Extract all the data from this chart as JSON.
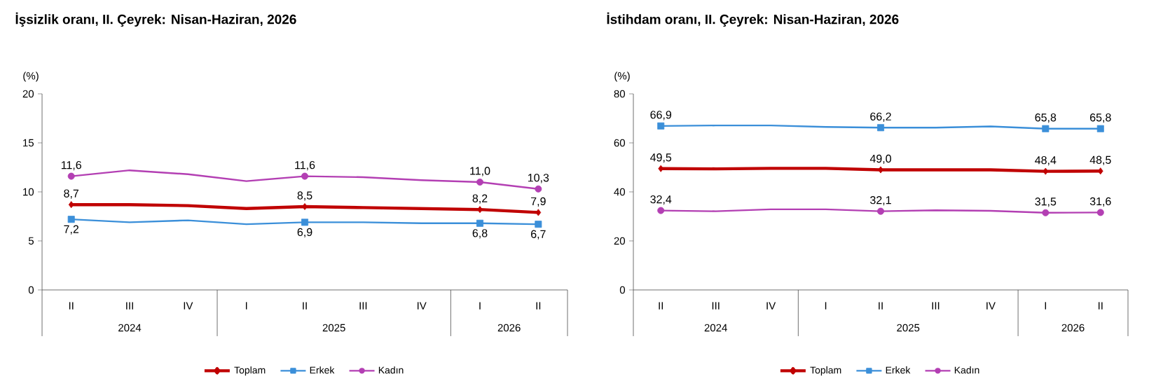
{
  "chart_data": [
    {
      "type": "line",
      "title": "İşsizlik oranı, II. Çeyrek: Nisan-Haziran, 2026",
      "ylabel": "(%)",
      "categories": [
        "II",
        "III",
        "IV",
        "I",
        "II",
        "III",
        "IV",
        "I",
        "II"
      ],
      "annotations": [
        "2024",
        "2025",
        "2026"
      ],
      "ylim": [
        0,
        20
      ],
      "yticks": [
        0,
        5,
        10,
        15,
        20
      ],
      "legend": "bottom",
      "series": [
        {
          "name": "Toplam",
          "color": "#c00000",
          "values": [
            8.7,
            8.7,
            8.6,
            8.3,
            8.5,
            8.4,
            8.3,
            8.2,
            7.9
          ],
          "value_labels": [
            "8,7",
            null,
            null,
            null,
            "8,5",
            null,
            null,
            "8,2",
            "7,9"
          ]
        },
        {
          "name": "Erkek",
          "color": "#3b8fd9",
          "values": [
            7.2,
            6.9,
            7.1,
            6.7,
            6.9,
            6.9,
            6.8,
            6.8,
            6.7
          ],
          "value_labels": [
            "7,2",
            null,
            null,
            null,
            "6,9",
            null,
            null,
            "6,8",
            "6,7"
          ]
        },
        {
          "name": "Kadın",
          "color": "#b33fb3",
          "values": [
            11.6,
            12.2,
            11.8,
            11.1,
            11.6,
            11.5,
            11.2,
            11.0,
            10.3
          ],
          "value_labels": [
            "11,6",
            null,
            null,
            null,
            "11,6",
            null,
            null,
            "11,0",
            "10,3"
          ]
        }
      ]
    },
    {
      "type": "line",
      "title": "İstihdam oranı, II. Çeyrek: Nisan-Haziran, 2026",
      "ylabel": "(%)",
      "categories": [
        "II",
        "III",
        "IV",
        "I",
        "II",
        "III",
        "IV",
        "I",
        "II"
      ],
      "annotations": [
        "2024",
        "2025",
        "2026"
      ],
      "ylim": [
        0,
        80
      ],
      "yticks": [
        0,
        20,
        40,
        60,
        80
      ],
      "legend": "bottom",
      "series": [
        {
          "name": "Toplam",
          "color": "#c00000",
          "values": [
            49.5,
            49.4,
            49.6,
            49.6,
            49.0,
            49.0,
            49.0,
            48.4,
            48.5
          ],
          "value_labels": [
            "49,5",
            null,
            null,
            null,
            "49,0",
            null,
            null,
            "48,4",
            "48,5"
          ]
        },
        {
          "name": "Erkek",
          "color": "#3b8fd9",
          "values": [
            66.9,
            67.1,
            67.1,
            66.5,
            66.2,
            66.2,
            66.7,
            65.8,
            65.8
          ],
          "value_labels": [
            "66,9",
            null,
            null,
            null,
            "66,2",
            null,
            null,
            "65,8",
            "65,8"
          ]
        },
        {
          "name": "Kadın",
          "color": "#b33fb3",
          "values": [
            32.4,
            32.1,
            32.9,
            32.9,
            32.1,
            32.5,
            32.3,
            31.5,
            31.6
          ],
          "value_labels": [
            "32,4",
            null,
            null,
            null,
            "32,1",
            null,
            null,
            "31,5",
            "31,6"
          ]
        }
      ]
    }
  ]
}
